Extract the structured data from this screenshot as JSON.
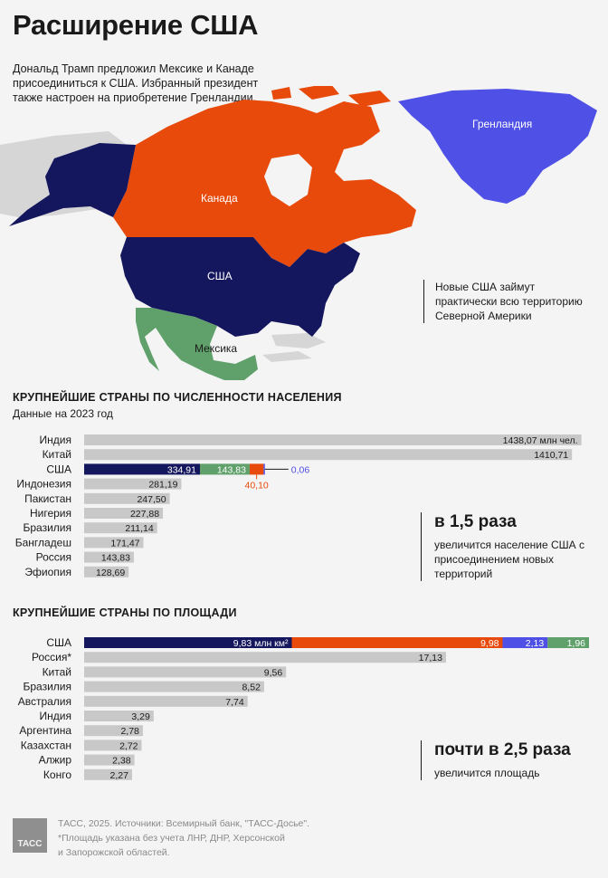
{
  "title": "Расширение США",
  "lead": "Дональд Трамп предложил Мексике и Канаде присоединиться к США. Избранный президент также настроен на приобретение Гренландии.",
  "map": {
    "labels": {
      "greenland": "Гренландия",
      "canada": "Канада",
      "usa": "США",
      "mexico": "Мексика"
    },
    "colors": {
      "greenland": "#4f50e6",
      "canada": "#e84a0c",
      "usa": "#15175e",
      "mexico": "#5fa06b",
      "land": "#d6d6d6"
    }
  },
  "note": "Новые США займут практически всю территорию Северной Америки",
  "population": {
    "title": "КРУПНЕЙШИЕ СТРАНЫ ПО ЧИСЛЕННОСТИ НАСЕЛЕНИЯ",
    "subtitle": "Данные на 2023 год",
    "callout_big": "в 1,5 раза",
    "callout_small": "увеличится население США с присоединением новых территорий"
  },
  "area": {
    "title": "КРУПНЕЙШИЕ СТРАНЫ ПО ПЛОЩАДИ",
    "callout_big": "почти в 2,5 раза",
    "callout_small": "увеличится площадь"
  },
  "chart_data": [
    {
      "type": "bar",
      "title": "КРУПНЕЙШИЕ СТРАНЫ ПО ЧИСЛЕННОСТИ НАСЕЛЕНИЯ",
      "subtitle": "Данные на 2023 год",
      "categories": [
        "Индия",
        "Китай",
        "США",
        "Индонезия",
        "Пакистан",
        "Нигерия",
        "Бразилия",
        "Бангладеш",
        "Россия",
        "Эфиопия"
      ],
      "values": [
        1438.07,
        1410.71,
        334.91,
        281.19,
        247.5,
        227.88,
        211.14,
        171.47,
        143.83,
        128.69
      ],
      "value_labels": [
        "1438,07 млн чел.",
        "1410,71",
        "334,91",
        "281,19",
        "247,50",
        "227,88",
        "211,14",
        "171,47",
        "143,83",
        "128,69"
      ],
      "usa_additions": [
        {
          "value": 143.83,
          "label": "143,83",
          "color": "#5fa06b"
        },
        {
          "value": 40.1,
          "label": "40,10",
          "color": "#e84a0c"
        },
        {
          "value": 0.06,
          "label": "0,06",
          "color": "#4f50e6"
        }
      ],
      "xlim": [
        0,
        1460
      ]
    },
    {
      "type": "bar",
      "title": "КРУПНЕЙШИЕ СТРАНЫ ПО ПЛОЩАДИ",
      "categories": [
        "США",
        "Россия*",
        "Китай",
        "Бразилия",
        "Австралия",
        "Индия",
        "Аргентина",
        "Казахстан",
        "Алжир",
        "Конго"
      ],
      "values": [
        9.83,
        17.13,
        9.56,
        8.52,
        7.74,
        3.29,
        2.78,
        2.72,
        2.38,
        2.27
      ],
      "value_labels": [
        "9,83 млн км²",
        "17,13",
        "9,56",
        "8,52",
        "7,74",
        "3,29",
        "2,78",
        "2,72",
        "2,38",
        "2,27"
      ],
      "usa_additions": [
        {
          "value": 9.98,
          "label": "9,98",
          "color": "#e84a0c"
        },
        {
          "value": 2.13,
          "label": "2,13",
          "color": "#4f50e6"
        },
        {
          "value": 1.96,
          "label": "1,96",
          "color": "#5fa06b"
        }
      ],
      "xlim": [
        0,
        23.9
      ]
    }
  ],
  "footer": {
    "line1": "ТАСС, 2025. Источники: Всемирный банк, \"ТАСС-Досье\".",
    "line2": "*Площадь указана без учета ЛНР, ДНР, Херсонской",
    "line3": "и Запорожской областей.",
    "logo": "ТАСС"
  }
}
